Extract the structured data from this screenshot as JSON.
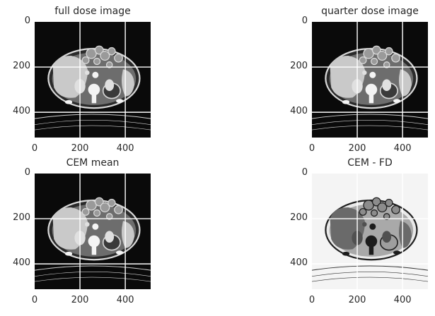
{
  "panels": [
    {
      "title": "full dose image",
      "variant": "ct",
      "x_ticks": [
        "0",
        "200",
        "400"
      ],
      "y_ticks": [
        "0",
        "200",
        "400"
      ]
    },
    {
      "title": "quarter dose image",
      "variant": "ct",
      "x_ticks": [
        "0",
        "200",
        "400"
      ],
      "y_ticks": [
        "0",
        "200",
        "400"
      ]
    },
    {
      "title": "CEM mean",
      "variant": "ct",
      "x_ticks": [
        "0",
        "200",
        "400"
      ],
      "y_ticks": [
        "0",
        "200",
        "400"
      ]
    },
    {
      "title": "CEM - FD",
      "variant": "diff",
      "x_ticks": [
        "0",
        "200",
        "400"
      ],
      "y_ticks": [
        "0",
        "200",
        "400"
      ]
    }
  ],
  "colors": {
    "background": "#ffffff",
    "ct_background": "#0a0a0a",
    "diff_background": "#f4f4f4",
    "grid": "#ffffff",
    "text": "#262626"
  }
}
